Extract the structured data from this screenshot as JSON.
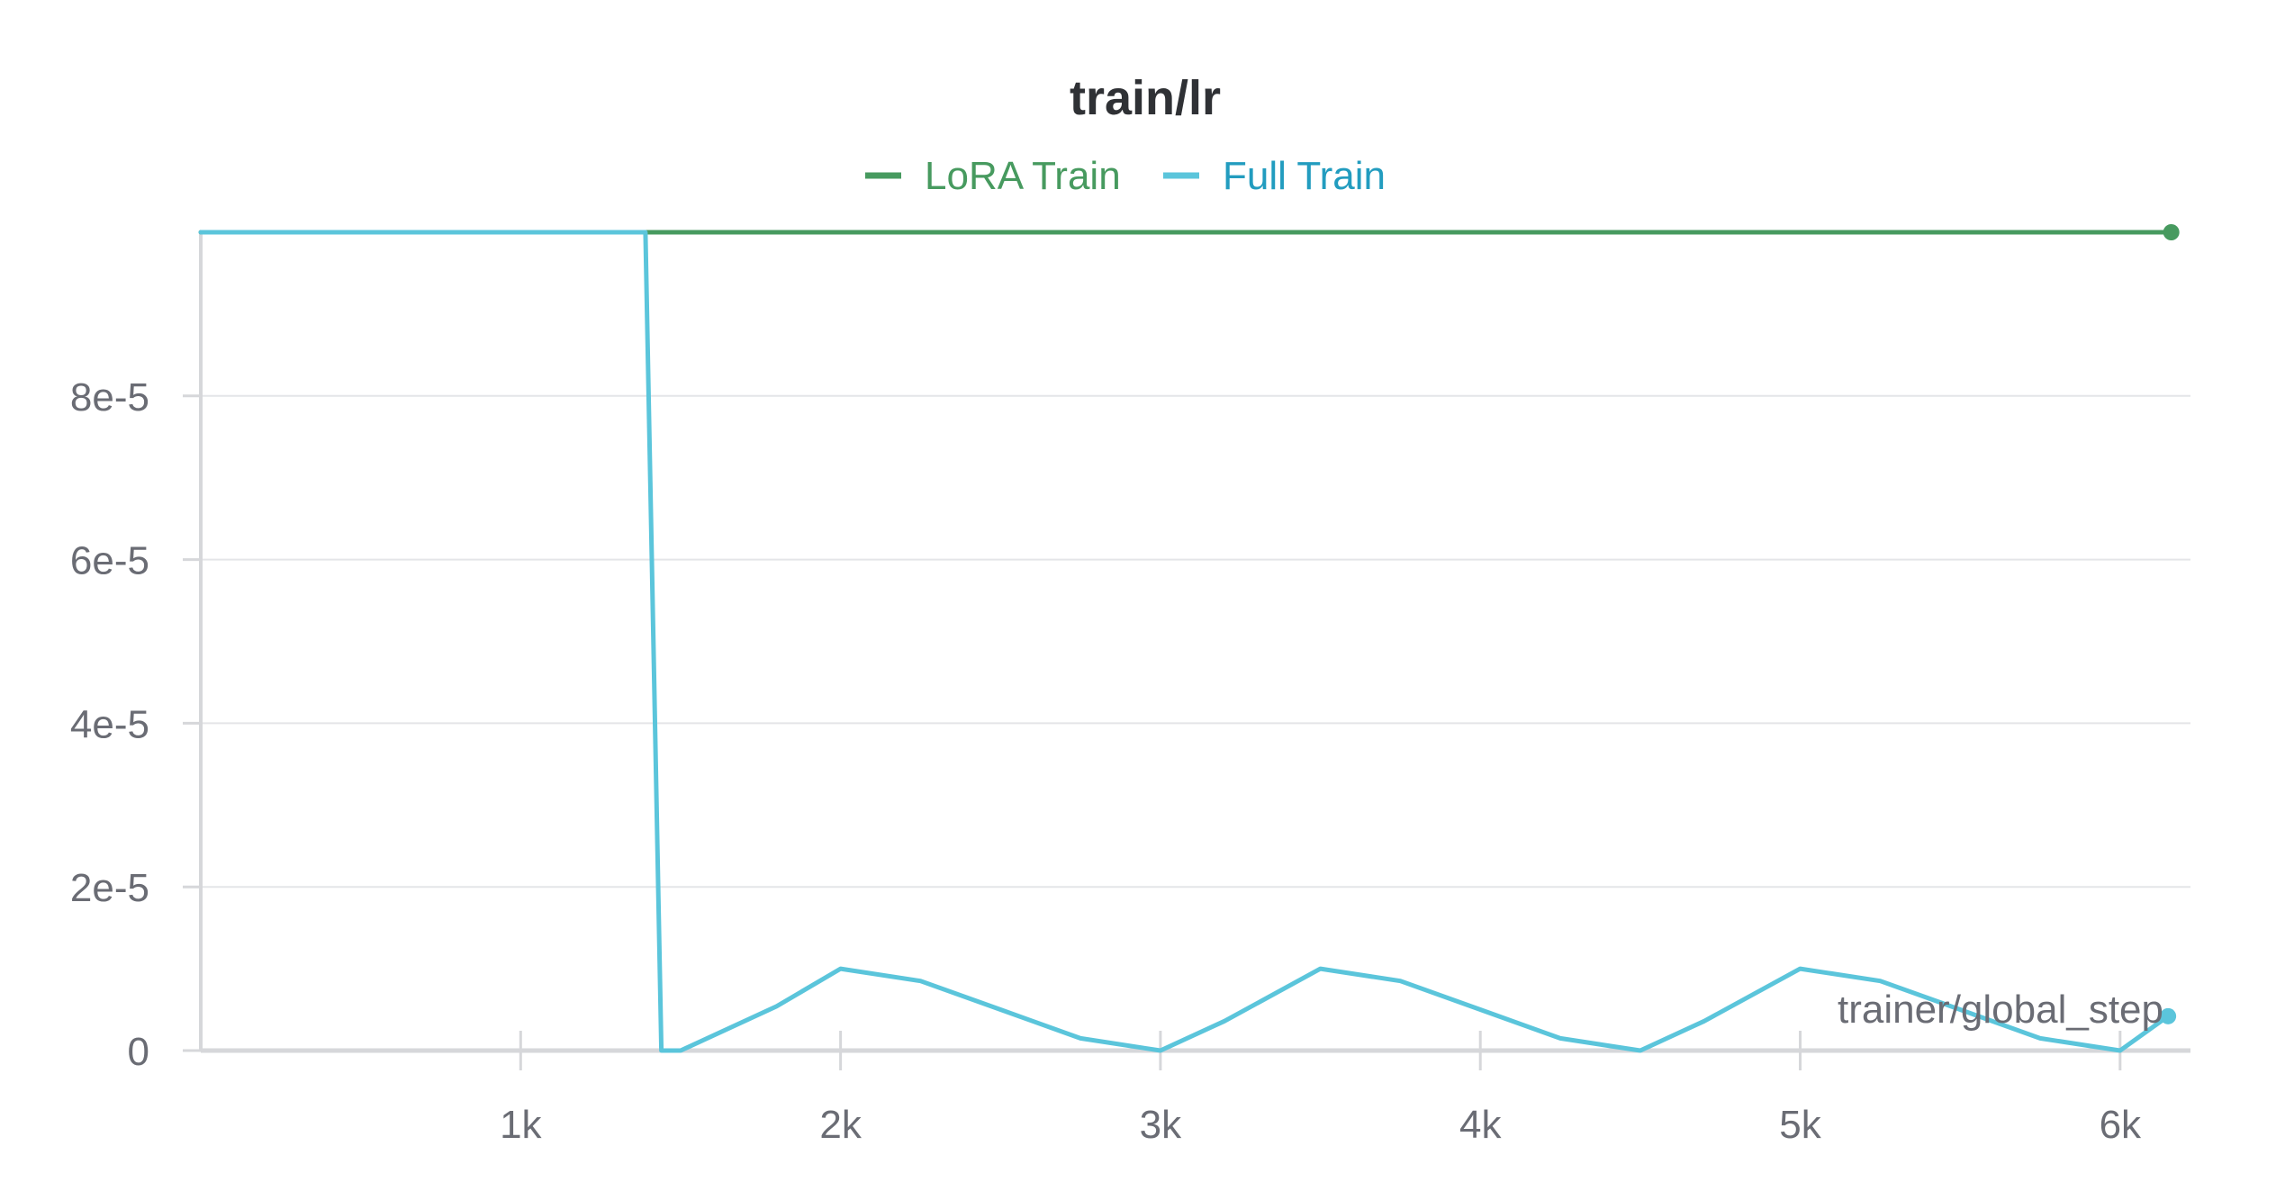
{
  "chart_data": {
    "type": "line",
    "title": "train/lr",
    "xlabel": "trainer/global_step",
    "ylabel": "",
    "xlim": [
      0,
      6220
    ],
    "ylim": [
      0,
      0.0001
    ],
    "x_ticks": [
      1000,
      2000,
      3000,
      4000,
      5000,
      6000
    ],
    "x_tick_labels": [
      "1k",
      "2k",
      "3k",
      "4k",
      "5k",
      "6k"
    ],
    "y_ticks": [
      0,
      2e-05,
      4e-05,
      6e-05,
      8e-05
    ],
    "y_tick_labels": [
      "0",
      "2e-5",
      "4e-5",
      "6e-5",
      "8e-5"
    ],
    "grid": true,
    "legend_position": "top-center",
    "series": [
      {
        "name": "LoRA Train",
        "color": "#479a5f",
        "x": [
          0,
          6160
        ],
        "y": [
          0.0001,
          0.0001
        ],
        "end_marker": true
      },
      {
        "name": "Full Train",
        "color": "#5bc5db",
        "legend_text_color": "#229cbf",
        "x": [
          0,
          1390,
          1440,
          1500,
          1800,
          2000,
          2250,
          2500,
          2750,
          3000,
          3200,
          3500,
          3750,
          4000,
          4250,
          4500,
          4700,
          5000,
          5250,
          5500,
          5750,
          6000,
          6150
        ],
        "y": [
          0.0001,
          0.0001,
          0,
          0,
          5.4e-06,
          1e-05,
          8.5e-06,
          5e-06,
          1.5e-06,
          0,
          3.6e-06,
          1e-05,
          8.5e-06,
          5e-06,
          1.5e-06,
          0,
          3.6e-06,
          1e-05,
          8.5e-06,
          5e-06,
          1.5e-06,
          0,
          4.2e-06
        ],
        "end_marker": true
      }
    ]
  }
}
